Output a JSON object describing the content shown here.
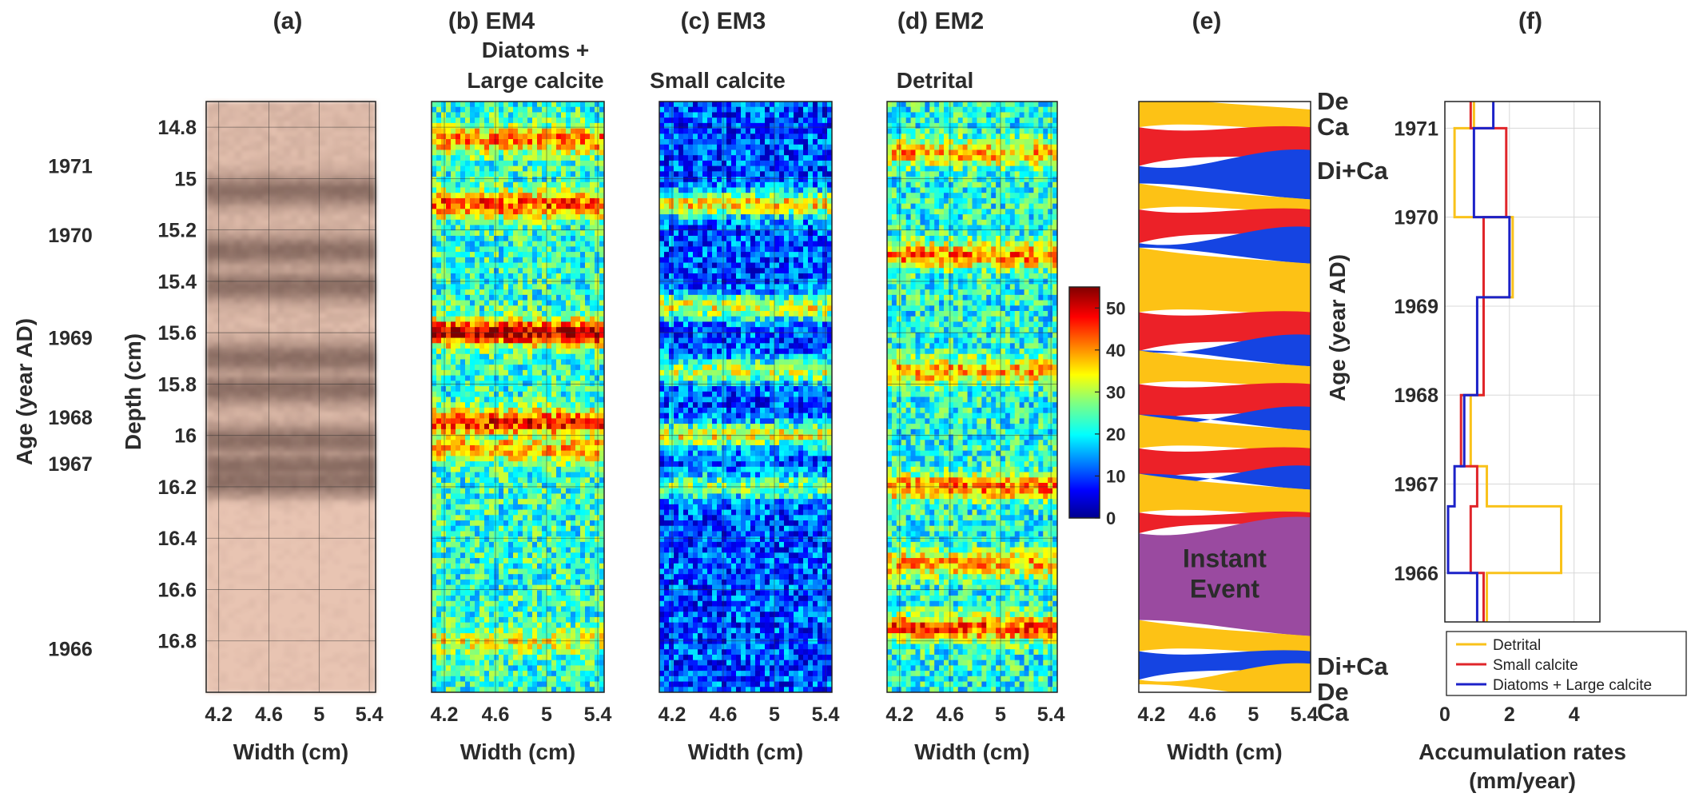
{
  "chart_data": {
    "type": "heatmap",
    "colors": {
      "detrital": "#fdc215",
      "calcite": "#ec2128",
      "diatoms": "#1544e2",
      "instant_event": "#9a4aa0",
      "label_de": "#f5b80b",
      "label_ca": "#e31b23",
      "label_dica": "#1a46dc"
    },
    "left_axes": {
      "age_label": "Age (year AD)",
      "age_ticks": [
        {
          "label": "1971",
          "depth": 14.95
        },
        {
          "label": "1970",
          "depth": 15.22
        },
        {
          "label": "1969",
          "depth": 15.62
        },
        {
          "label": "1968",
          "depth": 15.93
        },
        {
          "label": "1967",
          "depth": 16.11
        },
        {
          "label": "1966",
          "depth": 16.83
        }
      ],
      "depth_label": "Depth (cm)",
      "depth_range": [
        14.7,
        17.0
      ],
      "depth_ticks": [
        "14.8",
        "15",
        "15.2",
        "15.4",
        "15.6",
        "15.8",
        "16",
        "16.2",
        "16.4",
        "16.6",
        "16.8"
      ],
      "depth_tick_values": [
        14.8,
        15.0,
        15.2,
        15.4,
        15.6,
        15.8,
        16.0,
        16.2,
        16.4,
        16.6,
        16.8
      ]
    },
    "width_axis": {
      "label": "Width (cm)",
      "range": [
        4.1,
        5.45
      ],
      "ticks": [
        "4.2",
        "4.6",
        "5",
        "5.4"
      ],
      "tick_values": [
        4.2,
        4.6,
        5.0,
        5.4
      ]
    },
    "panels": [
      {
        "id": "a",
        "letter": "(a)",
        "subtitle": "",
        "kind": "photo"
      },
      {
        "id": "b",
        "letter": "(b) EM4",
        "subtitle": "Diatoms +\nLarge calcite",
        "kind": "abundance",
        "peaks": [
          [
            14.85,
            0.75
          ],
          [
            15.1,
            0.8
          ],
          [
            15.6,
            0.95
          ],
          [
            15.95,
            0.85
          ],
          [
            16.05,
            0.7
          ],
          [
            16.8,
            0.6
          ]
        ],
        "base": 0.42
      },
      {
        "id": "c",
        "letter": "(c) EM3",
        "subtitle": "Small calcite",
        "kind": "abundance",
        "peaks": [
          [
            15.1,
            0.65
          ],
          [
            15.5,
            0.6
          ],
          [
            15.75,
            0.55
          ],
          [
            16.0,
            0.6
          ],
          [
            16.2,
            0.5
          ]
        ],
        "base": 0.2
      },
      {
        "id": "d",
        "letter": "(d) EM2",
        "subtitle": "Detrital",
        "kind": "abundance",
        "peaks": [
          [
            14.9,
            0.7
          ],
          [
            15.3,
            0.75
          ],
          [
            15.75,
            0.7
          ],
          [
            16.2,
            0.75
          ],
          [
            16.5,
            0.7
          ],
          [
            16.75,
            0.8
          ]
        ],
        "base": 0.4
      },
      {
        "id": "e",
        "letter": "(e)",
        "subtitle": "",
        "kind": "classes"
      }
    ],
    "colorbar": {
      "range": [
        0,
        55
      ],
      "ticks": [
        "0",
        "10",
        "20",
        "30",
        "40",
        "50"
      ],
      "tick_values": [
        0,
        10,
        20,
        30,
        40,
        50
      ]
    },
    "classes_panel": {
      "bands": [
        {
          "cls": "De",
          "top": 14.7,
          "bottom": 14.8
        },
        {
          "cls": "Ca",
          "top": 14.8,
          "bottom": 14.92
        },
        {
          "cls": "DiCa",
          "top": 14.92,
          "bottom": 15.05
        },
        {
          "cls": "De",
          "top": 15.05,
          "bottom": 15.12
        },
        {
          "cls": "Ca",
          "top": 15.12,
          "bottom": 15.22
        },
        {
          "cls": "DiCa",
          "top": 15.22,
          "bottom": 15.3
        },
        {
          "cls": "De",
          "top": 15.3,
          "bottom": 15.52
        },
        {
          "cls": "Ca",
          "top": 15.52,
          "bottom": 15.64
        },
        {
          "cls": "DiCa",
          "top": 15.64,
          "bottom": 15.7
        },
        {
          "cls": "De",
          "top": 15.7,
          "bottom": 15.8
        },
        {
          "cls": "Ca",
          "top": 15.8,
          "bottom": 15.92
        },
        {
          "cls": "DiCa",
          "top": 15.92,
          "bottom": 15.95
        },
        {
          "cls": "De",
          "top": 15.95,
          "bottom": 16.05
        },
        {
          "cls": "Ca",
          "top": 16.05,
          "bottom": 16.15
        },
        {
          "cls": "DiCa",
          "top": 16.15,
          "bottom": 16.18
        },
        {
          "cls": "De",
          "top": 16.18,
          "bottom": 16.3
        },
        {
          "cls": "Ca",
          "top": 16.3,
          "bottom": 16.35
        },
        {
          "cls": "Event",
          "top": 16.35,
          "bottom": 16.75
        },
        {
          "cls": "De",
          "top": 16.75,
          "bottom": 16.84
        },
        {
          "cls": "DiCa",
          "top": 16.84,
          "bottom": 16.92
        },
        {
          "cls": "De",
          "top": 16.92,
          "bottom": 17.0
        }
      ],
      "event_label": "Instant\nEvent",
      "right_labels": [
        {
          "text": "De",
          "cls": "De",
          "depth": 14.7
        },
        {
          "text": "Ca",
          "cls": "Ca",
          "depth": 14.8
        },
        {
          "text": "Di+Ca",
          "cls": "DiCa",
          "depth": 14.97
        },
        {
          "text": "Di+Ca",
          "cls": "DiCa",
          "depth": 16.9
        },
        {
          "text": "De",
          "cls": "De",
          "depth": 17.0
        },
        {
          "text": "Ca",
          "cls": "Ca",
          "depth": 17.08
        }
      ]
    },
    "rates_panel": {
      "letter": "(f)",
      "ylabel": "Age (year AD)",
      "xlabel": "Accumulation rates\n(mm/year)",
      "xlim": [
        0,
        4.8
      ],
      "xticks": [
        "0",
        "2",
        "4"
      ],
      "xtick_values": [
        0,
        2,
        4
      ],
      "ylim": [
        1971.3,
        1965.45
      ],
      "yticks": [
        "1971",
        "1970",
        "1969",
        "1968",
        "1967",
        "1966"
      ],
      "ytick_values": [
        1971,
        1970,
        1969,
        1968,
        1967,
        1966
      ],
      "grid": true,
      "legend_position": "bottom-right",
      "series": [
        {
          "name": "Detrital",
          "color": "#f9c21a",
          "steps": [
            [
              1971.3,
              1971.0,
              0.9
            ],
            [
              1971.0,
              1970.0,
              0.3
            ],
            [
              1970.0,
              1969.1,
              2.1
            ],
            [
              1969.1,
              1968.0,
              1.2
            ],
            [
              1968.0,
              1967.2,
              0.8
            ],
            [
              1967.2,
              1966.75,
              1.3
            ],
            [
              1966.75,
              1966.0,
              3.6
            ],
            [
              1966.0,
              1965.45,
              1.3
            ]
          ]
        },
        {
          "name": "Small calcite",
          "color": "#e0252a",
          "steps": [
            [
              1971.3,
              1971.0,
              0.8
            ],
            [
              1971.0,
              1970.0,
              1.9
            ],
            [
              1970.0,
              1969.1,
              1.2
            ],
            [
              1969.1,
              1968.0,
              1.2
            ],
            [
              1968.0,
              1967.2,
              0.5
            ],
            [
              1967.2,
              1966.75,
              1.0
            ],
            [
              1966.75,
              1966.0,
              0.8
            ],
            [
              1966.0,
              1965.45,
              1.2
            ]
          ]
        },
        {
          "name": "Diatoms + Large calcite",
          "color": "#1c22c8",
          "steps": [
            [
              1971.3,
              1971.0,
              1.5
            ],
            [
              1971.0,
              1970.0,
              0.9
            ],
            [
              1970.0,
              1969.1,
              2.0
            ],
            [
              1969.1,
              1968.0,
              1.0
            ],
            [
              1968.0,
              1967.2,
              0.6
            ],
            [
              1967.2,
              1966.75,
              0.3
            ],
            [
              1966.75,
              1966.0,
              0.1
            ],
            [
              1966.0,
              1965.45,
              1.0
            ]
          ]
        }
      ]
    }
  }
}
